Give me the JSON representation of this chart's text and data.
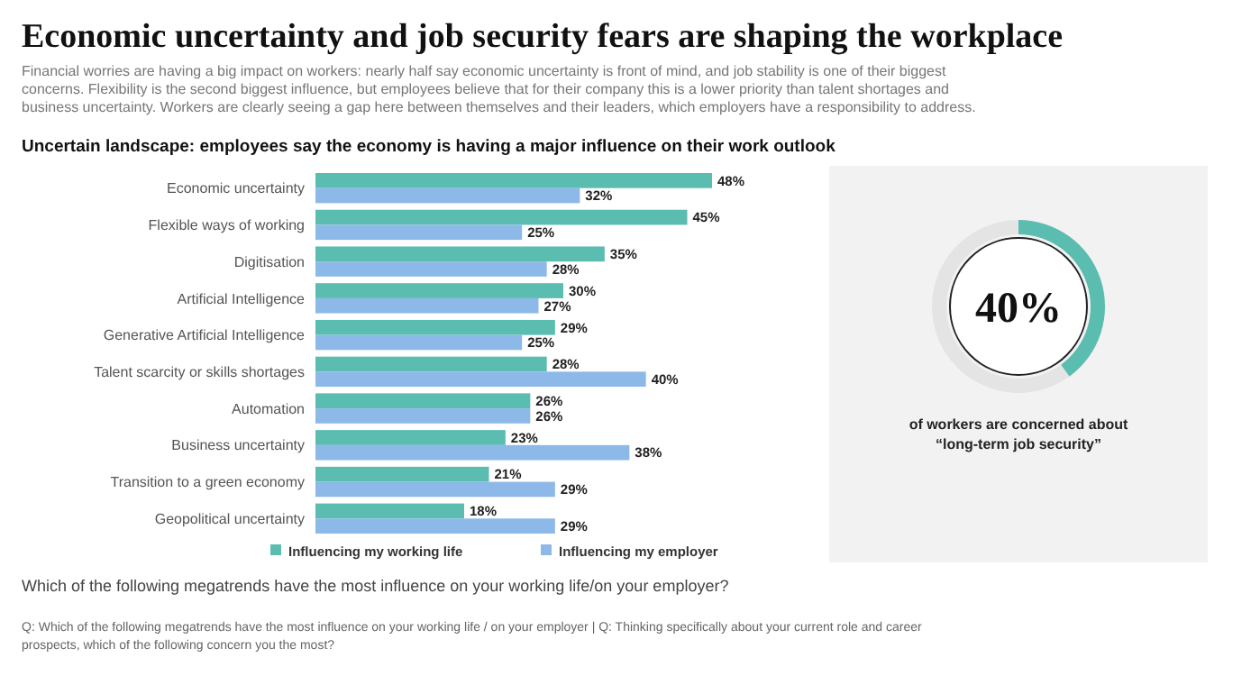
{
  "chart_data": [
    {
      "type": "bar",
      "orientation": "horizontal",
      "title": "Economic uncertainty and job security fears are shaping the workplace",
      "subtitle": "Financial worries are having a big impact on workers: nearly half say economic uncertainty is front of mind, and job stability is one of their biggest concerns. Flexibility is the second biggest influence, but employees believe that for their company this is a lower priority than talent shortages and business uncertainty. Workers are clearly seeing a gap here between themselves and their leaders, which employers have a responsibility to address.",
      "xlabel": "Uncertain landscape: employees say the economy is having a major influence on their work outlook",
      "categories": [
        "Economic uncertainty",
        "Flexible ways of working",
        "Digitisation",
        "Artificial Intelligence",
        "Generative Artificial Intelligence",
        "Talent scarcity or skills shortages",
        "Automation",
        "Business uncertainty",
        "Transition to a green economy",
        "Geopolitical uncertainty"
      ],
      "series": [
        {
          "name": "Influencing my working life",
          "color": "#5bbcb0",
          "values": [
            48,
            45,
            35,
            30,
            29,
            28,
            26,
            23,
            21,
            18
          ],
          "value_labels": [
            "48%",
            "45%",
            "35%",
            "30%",
            "29%",
            "28%",
            "26%",
            "23%",
            "21%",
            "18%"
          ]
        },
        {
          "name": "Influencing my employer",
          "color": "#8db9e8",
          "values": [
            32,
            25,
            28,
            27,
            25,
            40,
            26,
            38,
            29,
            29
          ],
          "value_labels": [
            "32%",
            "25%",
            "28%",
            "27%",
            "25%",
            "40%",
            "26%",
            "38%",
            "29%",
            "29%"
          ]
        }
      ],
      "legend": "bottom",
      "annotations": [
        "Which of the following megatrends have the most influence on your working life/on your employer?",
        "Q: Which of the following megatrends have the most influence on your working life / on your employer | Q: Thinking specifically about your current role and career prospects, which of the following concern you the most?"
      ]
    },
    {
      "type": "donut",
      "categories": [
        null,
        null
      ],
      "values": [
        40,
        60
      ],
      "colors": [
        "#5bbcb0",
        "#e4e4e4"
      ],
      "title": "40%",
      "annotations": [
        "of workers are concerned about",
        "“long-term job security”"
      ]
    }
  ]
}
